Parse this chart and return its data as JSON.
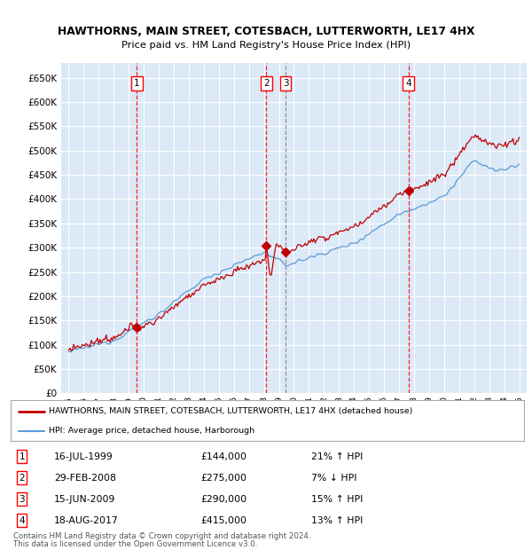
{
  "title1": "HAWTHORNS, MAIN STREET, COTESBACH, LUTTERWORTH, LE17 4HX",
  "title2": "Price paid vs. HM Land Registry's House Price Index (HPI)",
  "plot_bg": "#dce9f7",
  "transactions": [
    {
      "num": 1,
      "date_label": "16-JUL-1999",
      "price": 144000,
      "pct": "21%",
      "dir": "↑",
      "x_year": 1999.54,
      "vline_style": "red_dashed"
    },
    {
      "num": 2,
      "date_label": "29-FEB-2008",
      "price": 275000,
      "pct": "7%",
      "dir": "↓",
      "x_year": 2008.16,
      "vline_style": "red_dashed"
    },
    {
      "num": 3,
      "date_label": "15-JUN-2009",
      "price": 290000,
      "pct": "15%",
      "dir": "↑",
      "x_year": 2009.45,
      "vline_style": "grey_dashed"
    },
    {
      "num": 4,
      "date_label": "18-AUG-2017",
      "price": 415000,
      "pct": "13%",
      "dir": "↑",
      "x_year": 2017.63,
      "vline_style": "red_dashed"
    }
  ],
  "legend_line1": "HAWTHORNS, MAIN STREET, COTESBACH, LUTTERWORTH, LE17 4HX (detached house)",
  "legend_line2": "HPI: Average price, detached house, Harborough",
  "footer1": "Contains HM Land Registry data © Crown copyright and database right 2024.",
  "footer2": "This data is licensed under the Open Government Licence v3.0.",
  "ylim": [
    0,
    680000
  ],
  "yticks": [
    0,
    50000,
    100000,
    150000,
    200000,
    250000,
    300000,
    350000,
    400000,
    450000,
    500000,
    550000,
    600000,
    650000
  ],
  "xlim_start": 1994.5,
  "xlim_end": 2025.5,
  "red_color": "#c00000",
  "blue_color": "#5b9bd5"
}
